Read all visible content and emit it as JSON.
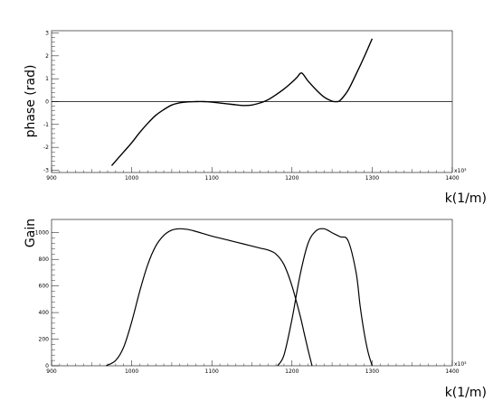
{
  "chart_data": [
    {
      "type": "line",
      "xlabel": "k(1/m)",
      "ylabel": "phase (rad)",
      "x_multiplier_label": "x10³",
      "xlim": [
        900,
        1400
      ],
      "ylim": [
        -3.1,
        3.1
      ],
      "xticks": [
        "900",
        "1000",
        "1100",
        "1200",
        "1300",
        "1400"
      ],
      "yticks": [
        "-3",
        "-2",
        "-1",
        "0",
        "1",
        "2",
        "3"
      ],
      "reference_line_y": 0,
      "series": [
        {
          "x": [
            975,
            990,
            1000,
            1010,
            1020,
            1030,
            1040,
            1050,
            1060,
            1070,
            1080,
            1090,
            1100,
            1110,
            1120,
            1130,
            1140,
            1150,
            1160,
            1170,
            1180,
            1190,
            1200,
            1206,
            1212,
            1220,
            1230,
            1240,
            1250,
            1255,
            1260,
            1270,
            1280,
            1290,
            1300
          ],
          "y": [
            -2.8,
            -2.2,
            -1.8,
            -1.35,
            -0.95,
            -0.6,
            -0.35,
            -0.15,
            -0.05,
            -0.01,
            0.0,
            0.0,
            -0.02,
            -0.06,
            -0.1,
            -0.14,
            -0.17,
            -0.15,
            -0.06,
            0.08,
            0.3,
            0.55,
            0.85,
            1.05,
            1.25,
            0.9,
            0.52,
            0.2,
            0.02,
            0.0,
            0.05,
            0.5,
            1.2,
            1.95,
            2.75
          ]
        }
      ]
    },
    {
      "type": "line",
      "xlabel": "k(1/m)",
      "ylabel": "Gain",
      "x_multiplier_label": "x10³",
      "xlim": [
        900,
        1400
      ],
      "ylim": [
        0,
        1100
      ],
      "xticks": [
        "900",
        "1000",
        "1100",
        "1200",
        "1300",
        "1400"
      ],
      "yticks": [
        "0",
        "200",
        "400",
        "600",
        "800",
        "1000"
      ],
      "series": [
        {
          "x": [
            968,
            980,
            990,
            1000,
            1010,
            1020,
            1030,
            1040,
            1050,
            1060,
            1070,
            1080,
            1100,
            1120,
            1140,
            1160,
            1170,
            1180,
            1190,
            1200,
            1210,
            1215,
            1220,
            1225
          ],
          "y": [
            0,
            40,
            140,
            330,
            560,
            760,
            900,
            980,
            1020,
            1030,
            1025,
            1010,
            975,
            945,
            915,
            885,
            870,
            840,
            760,
            600,
            380,
            250,
            120,
            0
          ]
        },
        {
          "x": [
            1182,
            1190,
            1200,
            1210,
            1220,
            1230,
            1240,
            1250,
            1260,
            1270,
            1280,
            1285,
            1290,
            1295,
            1300
          ],
          "y": [
            0,
            80,
            350,
            680,
            920,
            1015,
            1030,
            1000,
            970,
            940,
            700,
            450,
            250,
            100,
            0
          ]
        }
      ]
    }
  ]
}
